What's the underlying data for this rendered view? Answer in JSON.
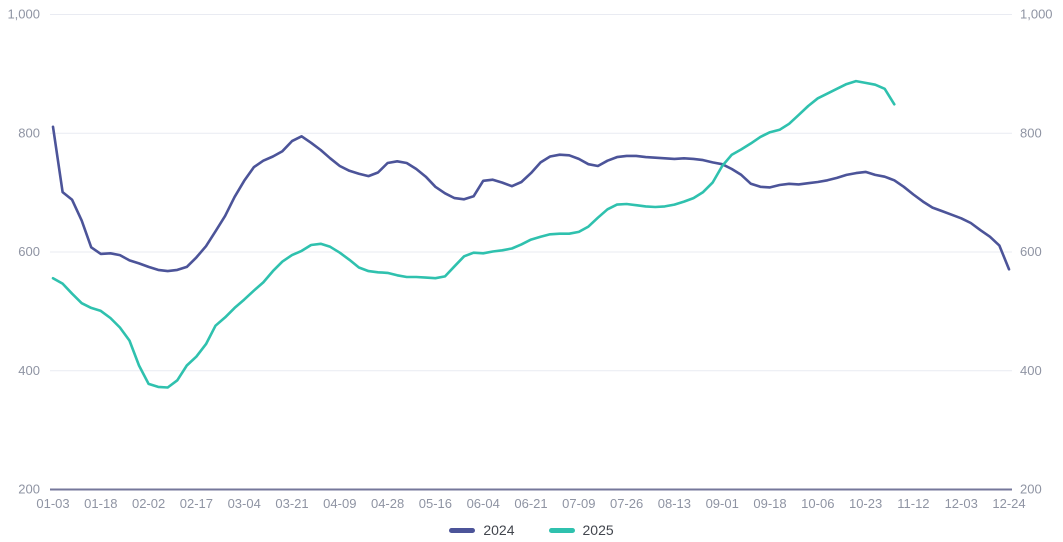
{
  "chart_data": {
    "type": "line",
    "title": "",
    "xlabel": "",
    "ylabel": "",
    "x_tick_labels": [
      "01-03",
      "01-18",
      "02-02",
      "02-17",
      "03-04",
      "03-21",
      "04-09",
      "04-28",
      "05-16",
      "06-04",
      "06-21",
      "07-09",
      "07-26",
      "08-13",
      "09-01",
      "09-18",
      "10-06",
      "10-23",
      "11-12",
      "12-03",
      "12-24"
    ],
    "y_ticks": [
      200,
      400,
      600,
      800,
      1000
    ],
    "y_tick_labels": [
      "200",
      "400",
      "600",
      "800",
      "1,000"
    ],
    "ylim": [
      200,
      1000
    ],
    "grid": true,
    "y_axis_sides": [
      "left",
      "right"
    ],
    "legend_position": "bottom-center",
    "series": [
      {
        "name": "2024",
        "color": "#4c5499",
        "values": [
          810,
          700,
          687,
          652,
          607,
          596,
          597,
          594,
          585,
          580,
          574,
          569,
          567,
          569,
          574,
          590,
          609,
          634,
          660,
          692,
          719,
          742,
          753,
          760,
          769,
          786,
          794,
          783,
          771,
          757,
          744,
          736,
          731,
          727,
          733,
          749,
          752,
          749,
          739,
          726,
          709,
          698,
          690,
          688,
          693,
          719,
          721,
          716,
          710,
          717,
          732,
          750,
          760,
          763,
          762,
          756,
          747,
          744,
          753,
          759,
          761,
          761,
          759,
          758,
          757,
          756,
          757,
          756,
          754,
          750,
          747,
          739,
          729,
          714,
          709,
          708,
          712,
          714,
          713,
          715,
          717,
          720,
          724,
          729,
          732,
          734,
          729,
          726,
          720,
          709,
          696,
          684,
          674,
          668,
          662,
          656,
          648,
          636,
          625,
          610,
          570
        ]
      },
      {
        "name": "2025",
        "color": "#2fc1ae",
        "values": [
          555,
          546,
          529,
          513,
          505,
          500,
          488,
          472,
          450,
          408,
          377,
          372,
          371,
          383,
          408,
          423,
          444,
          475,
          489,
          505,
          519,
          534,
          548,
          567,
          583,
          594,
          601,
          611,
          613,
          608,
          598,
          586,
          573,
          567,
          565,
          564,
          560,
          557,
          557,
          556,
          555,
          558,
          575,
          592,
          598,
          597,
          600,
          602,
          605,
          612,
          620,
          625,
          629,
          630,
          630,
          633,
          642,
          657,
          671,
          679,
          680,
          678,
          676,
          675,
          676,
          679,
          684,
          690,
          700,
          716,
          744,
          763,
          772,
          782,
          793,
          801,
          805,
          815,
          830,
          845,
          858,
          866,
          874,
          882,
          887,
          884,
          881,
          874,
          848
        ]
      }
    ],
    "legend": [
      {
        "label": "2024",
        "color": "#4c5499"
      },
      {
        "label": "2025",
        "color": "#2fc1ae"
      }
    ]
  },
  "style": {
    "grid_color": "#e9ebf2",
    "axis_line_color": "#75779b",
    "tick_label_color": "#8f94a3",
    "background": "#ffffff"
  }
}
